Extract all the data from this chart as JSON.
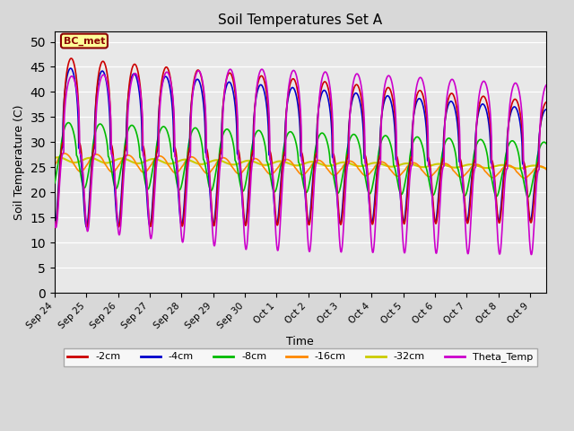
{
  "title": "Soil Temperatures Set A",
  "xlabel": "Time",
  "ylabel": "Soil Temperature (C)",
  "ylim": [
    0,
    52
  ],
  "yticks": [
    0,
    5,
    10,
    15,
    20,
    25,
    30,
    35,
    40,
    45,
    50
  ],
  "annotation": "BC_met",
  "fig_bg": "#d8d8d8",
  "plot_bg": "#e8e8e8",
  "series": {
    "-2cm": {
      "color": "#cc0000",
      "lw": 1.2
    },
    "-4cm": {
      "color": "#0000cc",
      "lw": 1.2
    },
    "-8cm": {
      "color": "#00bb00",
      "lw": 1.2
    },
    "-16cm": {
      "color": "#ff8800",
      "lw": 1.2
    },
    "-32cm": {
      "color": "#cccc00",
      "lw": 1.5
    },
    "Theta_Temp": {
      "color": "#cc00cc",
      "lw": 1.2
    }
  },
  "tick_labels": [
    "Sep 24",
    "Sep 25",
    "Sep 26",
    "Sep 27",
    "Sep 28",
    "Sep 29",
    "Sep 30",
    "Oct 1",
    "Oct 2",
    "Oct 3",
    "Oct 4",
    "Oct 5",
    "Oct 6",
    "Oct 7",
    "Oct 8",
    "Oct 9"
  ],
  "n_days": 15.5,
  "n_points": 2000
}
